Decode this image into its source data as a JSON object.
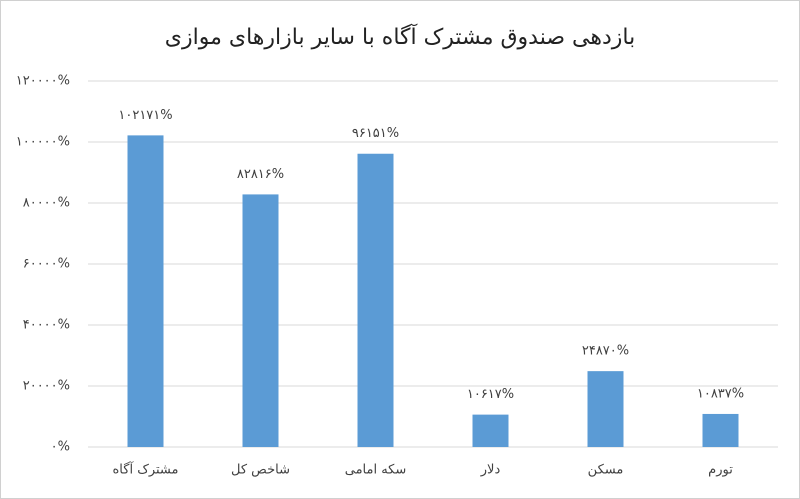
{
  "chart_data": {
    "type": "bar",
    "title": "بازدهی صندوق مشترک آگاه با سایر بازارهای موازی",
    "categories": [
      "مشترک آگاه",
      "شاخص کل",
      "سکه امامی",
      "دلار",
      "مسکن",
      "تورم"
    ],
    "values": [
      102171,
      82816,
      96151,
      10617,
      24870,
      10837
    ],
    "value_labels": [
      "۱۰۲۱۷۱%",
      "۸۲۸۱۶%",
      "۹۶۱۵۱%",
      "۱۰۶۱۷%",
      "۲۴۸۷۰%",
      "۱۰۸۳۷%"
    ],
    "color": "#5b9bd5",
    "ylim": [
      0,
      120000
    ],
    "yticks": [
      {
        "value": 0,
        "label": "۰%"
      },
      {
        "value": 20000,
        "label": "۲۰۰۰۰%"
      },
      {
        "value": 40000,
        "label": "۴۰۰۰۰%"
      },
      {
        "value": 60000,
        "label": "۶۰۰۰۰%"
      },
      {
        "value": 80000,
        "label": "۸۰۰۰۰%"
      },
      {
        "value": 100000,
        "label": "۱۰۰۰۰۰%"
      },
      {
        "value": 120000,
        "label": "۱۲۰۰۰۰%"
      }
    ],
    "grid": true
  }
}
